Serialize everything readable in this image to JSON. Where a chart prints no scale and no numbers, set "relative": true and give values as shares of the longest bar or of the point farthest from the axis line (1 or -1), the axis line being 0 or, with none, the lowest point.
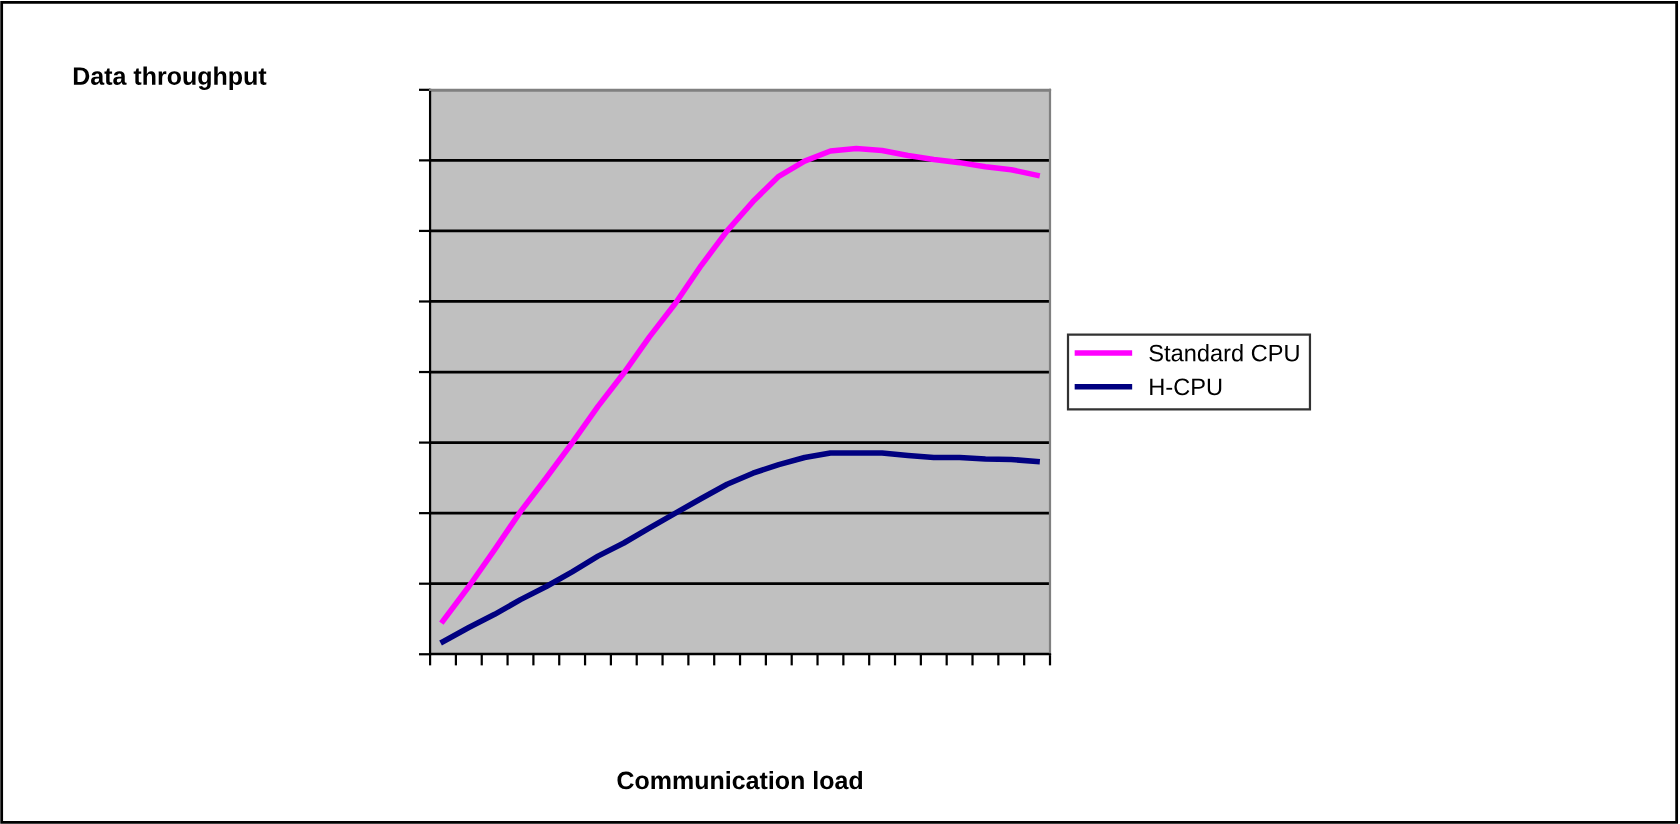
{
  "chart_data": {
    "type": "line",
    "annotations": [
      "Data throughput"
    ],
    "xlabel": "Communication load",
    "relative": true,
    "grid": "y",
    "legend": "right",
    "tick_labels": false,
    "marker": "none",
    "line_style": "solid",
    "categories": [
      null,
      null,
      null,
      null,
      null,
      null,
      null,
      null,
      null,
      null,
      null,
      null,
      null,
      null,
      null,
      null,
      null,
      null,
      null,
      null,
      null,
      null,
      null,
      null
    ],
    "series": [
      {
        "name": "Standard CPU",
        "color": "#ff00ff",
        "values": [
          0.066,
          0.134,
          0.207,
          0.282,
          0.349,
          0.418,
          0.49,
          0.556,
          0.628,
          0.694,
          0.769,
          0.837,
          0.895,
          0.945,
          0.975,
          0.995,
          1,
          0.996,
          0.986,
          0.978,
          0.972,
          0.964,
          0.958,
          0.947
        ]
      },
      {
        "name": "H-CPU",
        "color": "#000080",
        "values": [
          0.025,
          0.053,
          0.079,
          0.108,
          0.134,
          0.163,
          0.194,
          0.22,
          0.25,
          0.279,
          0.308,
          0.336,
          0.358,
          0.375,
          0.389,
          0.398,
          0.398,
          0.398,
          0.393,
          0.389,
          0.389,
          0.386,
          0.385,
          0.381
        ]
      }
    ]
  }
}
